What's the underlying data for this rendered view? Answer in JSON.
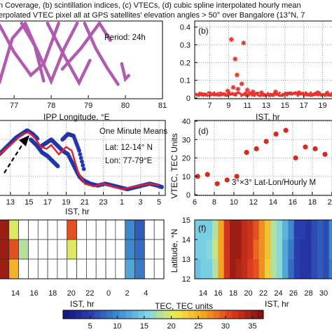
{
  "caption": {
    "line1": "n Coverage, (b) scintillation indices, (c) VTECs, (d) cubic spline interpolated hourly mean",
    "line2": "erpolated VTEC pixel all at GPS satellites' elevation angles > 50° over Bangalore (13°N, 7"
  },
  "colors": {
    "ipp_track": "#b05ab0",
    "s4_points": "#e8332b",
    "vtec_scatter": "#1f35a8",
    "vtec_mean": "#e8202a",
    "hourly_points": "#d62b22",
    "arrow": "#000000",
    "frame": "#000000"
  },
  "chart_data": [
    {
      "id": "a",
      "type": "line",
      "period_label": "Period: 24h",
      "xlabel": "IPP Longitude, °E",
      "x_ticks": [
        "77",
        "78",
        "79",
        "80",
        "81"
      ],
      "xlim": [
        76.6,
        81
      ],
      "ylim": [
        0,
        10
      ],
      "series": [
        {
          "x": [
            76.6,
            76.95,
            77.3,
            77.55,
            77.8
          ],
          "y": [
            2.0,
            7.8,
            9.8,
            7.0,
            2.2
          ]
        },
        {
          "x": [
            76.6,
            77.0,
            77.45,
            77.8,
            78.2
          ],
          "y": [
            9.6,
            6.0,
            3.0,
            4.5,
            9.8
          ]
        },
        {
          "x": [
            77.2,
            77.6,
            78.0,
            78.35,
            78.7
          ],
          "y": [
            9.8,
            6.5,
            2.2,
            6.5,
            9.8
          ]
        },
        {
          "x": [
            77.9,
            78.3,
            78.75,
            79.05
          ],
          "y": [
            9.8,
            6.0,
            2.0,
            5.0
          ]
        },
        {
          "x": [
            78.3,
            78.8,
            79.3,
            79.6
          ],
          "y": [
            3.8,
            6.5,
            9.8,
            7.5
          ]
        },
        {
          "x": [
            78.9,
            79.2,
            79.5,
            79.8
          ],
          "y": [
            9.8,
            6.5,
            4.0,
            1.8
          ]
        },
        {
          "x": [
            79.9,
            80.0,
            80.1
          ],
          "y": [
            4.5,
            2.5,
            3.0
          ]
        }
      ]
    },
    {
      "id": "b",
      "type": "scatter",
      "panel_label": "(b)",
      "xlabel": "IST, hr",
      "x_ticks": [
        "7",
        "9",
        "11",
        "13",
        "15",
        "17",
        "19"
      ],
      "y_ticks": [
        "0",
        "0.1",
        "0.2",
        "0.3",
        "0.4"
      ],
      "xlim": [
        5.4,
        20.3
      ],
      "ylim": [
        0,
        0.43
      ],
      "points": [
        [
          9.3,
          0.33
        ],
        [
          10.6,
          0.31
        ],
        [
          9.7,
          0.22
        ],
        [
          9.9,
          0.13
        ],
        [
          10.4,
          0.08
        ],
        [
          9.5,
          0.06
        ],
        [
          10.0,
          0.05
        ],
        [
          11.0,
          0.045
        ],
        [
          11.6,
          0.035
        ],
        [
          8.9,
          0.04
        ],
        [
          12.5,
          0.03
        ],
        [
          14.0,
          0.035
        ],
        [
          16.5,
          0.03
        ],
        [
          18.5,
          0.03
        ],
        [
          19.5,
          0.028
        ]
      ],
      "baseline": [
        0.012,
        0.032
      ]
    },
    {
      "id": "c",
      "type": "line",
      "legend": [
        "One Minute Means",
        "Lat: 12-14° N",
        "Lon: 77-79°E"
      ],
      "xlabel": "IST, hr",
      "x_ticks": [
        "13",
        "15",
        "17",
        "19",
        "21",
        "23",
        "1",
        "3",
        "5"
      ],
      "xlim": [
        11.8,
        29.6
      ],
      "ylim": [
        0,
        40
      ],
      "mean_curve": {
        "x": [
          11.8,
          13.0,
          14.3,
          15.0,
          15.6,
          16.3,
          16.9,
          17.4,
          18.2,
          19.0,
          19.6,
          20.3,
          21.0,
          22.0,
          23.0,
          24.0,
          25.0,
          26.0,
          27.0,
          28.0,
          29.0
        ],
        "y": [
          22,
          27,
          33,
          34,
          31,
          26,
          25,
          27,
          22,
          26,
          24,
          12,
          6,
          4.5,
          6,
          4.5,
          3,
          4,
          5,
          6,
          5
        ]
      },
      "scatter_series": [
        {
          "x": [
            11.8,
            12.4,
            13.0,
            13.6,
            14.2,
            14.8,
            15.4,
            16.0
          ],
          "y": [
            22,
            25,
            28,
            31,
            33,
            35,
            33,
            30
          ]
        },
        {
          "x": [
            15.2,
            15.8,
            16.4,
            17.0,
            17.6,
            18.2
          ],
          "y": [
            30,
            27,
            23,
            21,
            18,
            15
          ]
        },
        {
          "x": [
            16.2,
            16.8,
            17.4,
            18.0,
            18.6,
            19.2,
            19.8,
            20.4,
            21.0
          ],
          "y": [
            26,
            28,
            30,
            27,
            24,
            22,
            16,
            10,
            7
          ]
        },
        {
          "x": [
            18.6,
            19.2,
            19.8,
            20.4,
            21.0
          ],
          "y": [
            30,
            33,
            32,
            24,
            12
          ]
        },
        {
          "x": [
            20.8,
            21.6,
            22.4,
            23.2,
            24.0,
            24.8,
            25.6,
            26.4,
            27.2,
            28.0,
            28.8,
            29.4
          ],
          "y": [
            8,
            6,
            5,
            6,
            5,
            4,
            3,
            4,
            5,
            6,
            5,
            4
          ]
        }
      ]
    },
    {
      "id": "d",
      "type": "scatter",
      "panel_label": "(d)",
      "annotation": "3°×3° Lat-Lon/Hourly M",
      "ylabel": "VTEC, TEC Units",
      "xlabel": "IST, hr",
      "x_ticks": [
        "6",
        "8",
        "10",
        "12",
        "14",
        "16",
        "18",
        "20"
      ],
      "y_ticks": [
        "0",
        "10",
        "20",
        "30",
        "40"
      ],
      "xlim": [
        6,
        20.3
      ],
      "ylim": [
        0,
        40
      ],
      "x": [
        6.3,
        7.3,
        8.3,
        9.3,
        10.3,
        11.3,
        12.3,
        13.3,
        14.3,
        15.3,
        16.3,
        17.3,
        18.3,
        19.3,
        20.3
      ],
      "y": [
        10,
        11,
        6,
        8,
        10,
        23,
        25,
        29,
        33,
        35,
        20,
        26,
        25,
        22,
        26
      ]
    },
    {
      "id": "e",
      "type": "heatmap",
      "xlabel": "IST, hr",
      "x_ticks": [
        "14",
        "16",
        "18",
        "20",
        "22",
        "0",
        "2",
        "4"
      ],
      "cols": 17,
      "rows": 3,
      "values": [
        [
          35,
          20,
          0,
          0,
          0,
          0,
          0,
          30,
          0,
          0,
          0,
          0,
          0,
          10,
          7,
          0,
          0
        ],
        [
          35,
          30,
          18,
          0,
          0,
          0,
          0,
          20,
          0,
          0,
          0,
          0,
          0,
          10,
          8,
          0,
          0
        ],
        [
          35,
          25,
          0,
          0,
          0,
          0,
          0,
          0,
          0,
          0,
          0,
          0,
          0,
          12,
          9,
          0,
          0
        ]
      ]
    },
    {
      "id": "f",
      "type": "heatmap",
      "panel_label": "(f)",
      "ylabel": "Latitude, °N",
      "xlabel": "IST, hr",
      "y_ticks": [
        "12",
        "13",
        "14",
        "15"
      ],
      "x_ticks": [
        "14",
        "16",
        "18",
        "20",
        "22",
        "24",
        "26",
        "28",
        "30"
      ],
      "values": [
        [
          15,
          15,
          15,
          18,
          26,
          32,
          35,
          35,
          33,
          32,
          30,
          27,
          24,
          18,
          16,
          13,
          10,
          5,
          5,
          4,
          6,
          7,
          6,
          10
        ],
        [
          15,
          15,
          16,
          19,
          26,
          32,
          35,
          35,
          33,
          32,
          29,
          27,
          24,
          18,
          16,
          12,
          9,
          5,
          4,
          4,
          6,
          7,
          6,
          10
        ],
        [
          14,
          15,
          15,
          18,
          26,
          32,
          35,
          34,
          33,
          31,
          30,
          27,
          23,
          18,
          16,
          12,
          8,
          5,
          4,
          4,
          6,
          7,
          6,
          9
        ]
      ]
    },
    {
      "id": "colorbar",
      "type": "colorbar",
      "label": "TEC, TEC units",
      "ticks": [
        "5",
        "10",
        "15",
        "20",
        "25",
        "30",
        "35"
      ],
      "range": [
        0,
        37
      ]
    }
  ]
}
